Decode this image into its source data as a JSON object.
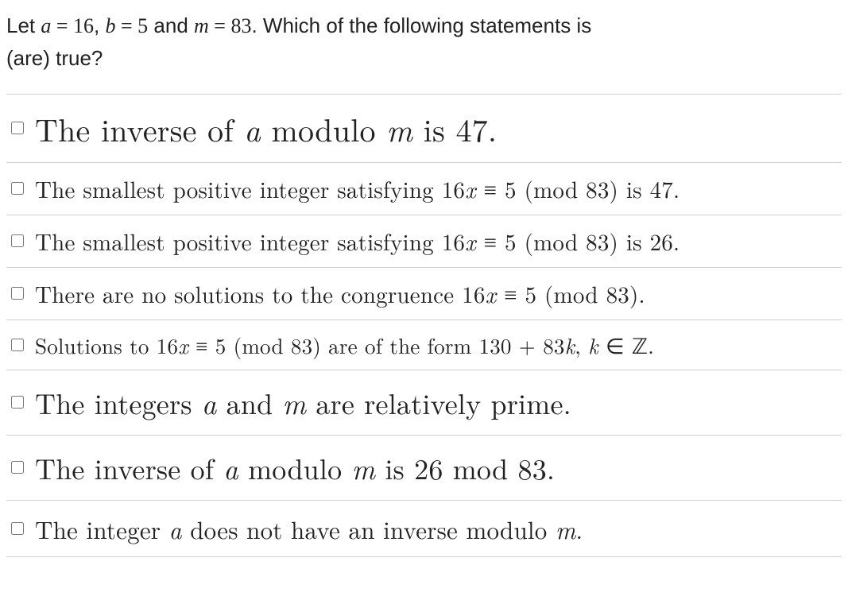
{
  "question": {
    "prefix": "Let ",
    "a_var": "a",
    "eq1": " = ",
    "a_val": "16",
    "sep1": ", ",
    "b_var": "b",
    "eq2": " = ",
    "b_val": "5",
    "and": " and ",
    "m_var": "m",
    "eq3": " = ",
    "m_val": "83",
    "suffix1": ". Which of the following statements is",
    "suffix2": "(are) true?"
  },
  "options": [
    {
      "size": "largemax",
      "parts": [
        {
          "t": "The inverse of ",
          "c": "mn"
        },
        {
          "t": "a",
          "c": "mi"
        },
        {
          "t": " modulo ",
          "c": "mn"
        },
        {
          "t": "m",
          "c": "mi"
        },
        {
          "t": " is 47.",
          "c": "mn"
        }
      ]
    },
    {
      "size": "medium",
      "parts": [
        {
          "t": "The smallest positive integer satisfying 16",
          "c": "mn"
        },
        {
          "t": "x",
          "c": "mi"
        },
        {
          "t": " ≡ 5 (mod 83) is 47.",
          "c": "mn"
        }
      ]
    },
    {
      "size": "medium",
      "parts": [
        {
          "t": "The smallest positive integer satisfying 16",
          "c": "mn"
        },
        {
          "t": "x",
          "c": "mi"
        },
        {
          "t": " ≡ 5 (mod 83) is 26.",
          "c": "mn"
        }
      ]
    },
    {
      "size": "medium",
      "parts": [
        {
          "t": "There are no solutions to the congruence 16",
          "c": "mn"
        },
        {
          "t": "x",
          "c": "mi"
        },
        {
          "t": " ≡ 5 (mod 83).",
          "c": "mn"
        }
      ]
    },
    {
      "size": "mediumsm",
      "parts": [
        {
          "t": "Solutions to 16",
          "c": "mn"
        },
        {
          "t": "x",
          "c": "mi"
        },
        {
          "t": " ≡ 5 (mod 83) are of the form 130 + 83",
          "c": "mn"
        },
        {
          "t": "k",
          "c": "mi"
        },
        {
          "t": ",  ",
          "c": "mn"
        },
        {
          "t": "k",
          "c": "mi"
        },
        {
          "t": " ∈ ",
          "c": "mn"
        },
        {
          "t": "ℤ",
          "c": "bb"
        },
        {
          "t": ".",
          "c": "mn"
        }
      ]
    },
    {
      "size": "large",
      "parts": [
        {
          "t": "The integers ",
          "c": "mn"
        },
        {
          "t": "a",
          "c": "mi"
        },
        {
          "t": " and ",
          "c": "mn"
        },
        {
          "t": "m",
          "c": "mi"
        },
        {
          "t": " are relatively prime.",
          "c": "mn"
        }
      ]
    },
    {
      "size": "large",
      "parts": [
        {
          "t": "The inverse of ",
          "c": "mn"
        },
        {
          "t": "a",
          "c": "mi"
        },
        {
          "t": " modulo ",
          "c": "mn"
        },
        {
          "t": "m",
          "c": "mi"
        },
        {
          "t": " is 26 mod 83.",
          "c": "mn"
        }
      ]
    },
    {
      "size": "small",
      "parts": [
        {
          "t": "The integer ",
          "c": "mn"
        },
        {
          "t": "a",
          "c": "mi"
        },
        {
          "t": " does not have an inverse modulo ",
          "c": "mn"
        },
        {
          "t": "m",
          "c": "mi"
        },
        {
          "t": ".",
          "c": "mn"
        }
      ]
    }
  ]
}
